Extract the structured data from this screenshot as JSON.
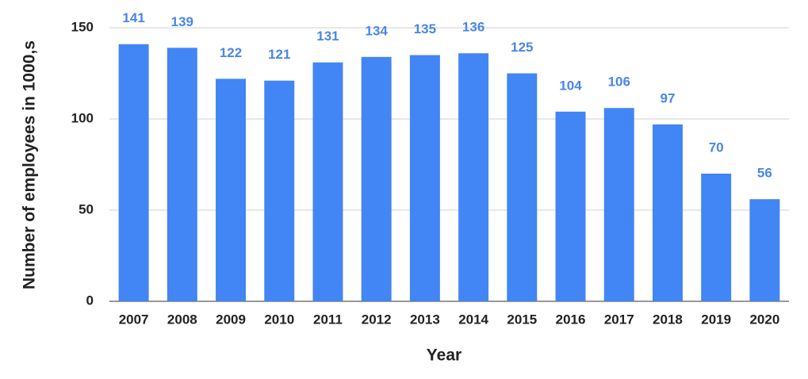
{
  "chart_data": {
    "type": "bar",
    "x_label": "Year",
    "y_label": "Number of employees in 1000,s",
    "categories": [
      "2007",
      "2008",
      "2009",
      "2010",
      "2011",
      "2012",
      "2013",
      "2014",
      "2015",
      "2016",
      "2017",
      "2018",
      "2019",
      "2020"
    ],
    "values": [
      141,
      139,
      122,
      121,
      131,
      134,
      135,
      136,
      125,
      104,
      106,
      97,
      70,
      56
    ],
    "color": "#4285f4",
    "label_color": "#4a86e8",
    "ylim": [
      0,
      150
    ],
    "yticks": [
      0,
      50,
      100,
      150
    ],
    "grid": true
  }
}
